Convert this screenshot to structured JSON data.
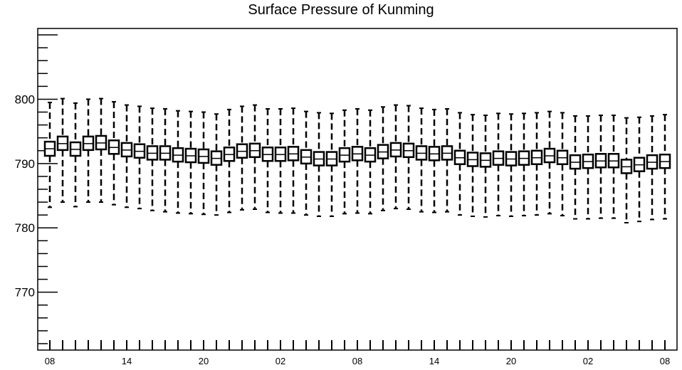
{
  "chart_data": {
    "type": "boxplot",
    "title": "Surface Pressure of Kunming",
    "xlabel": "",
    "ylabel": "",
    "ylim": [
      761,
      811
    ],
    "y_ticks": [
      "770",
      "780",
      "790",
      "800"
    ],
    "x_ticks": [
      "08",
      "14",
      "20",
      "02",
      "08",
      "14",
      "20",
      "02",
      "08"
    ],
    "time_step_hours": 1,
    "grid": false,
    "series": [
      {
        "median": [
          792.3,
          793.1,
          792.2,
          793.1,
          793.2,
          792.5,
          792.1,
          791.9,
          791.6,
          791.6,
          791.3,
          791.2,
          791.1,
          790.8,
          791.4,
          791.9,
          792.0,
          791.4,
          791.4,
          791.5,
          791.0,
          790.7,
          790.7,
          791.3,
          791.5,
          791.3,
          791.8,
          792.1,
          792.0,
          791.6,
          791.5,
          791.6,
          790.9,
          790.6,
          790.5,
          790.8,
          790.7,
          790.8,
          790.9,
          791.2,
          790.9,
          790.2,
          790.3,
          790.4,
          790.4,
          789.5,
          789.8,
          790.2,
          790.3
        ],
        "q1": [
          791.2,
          792.1,
          791.2,
          792.1,
          792.2,
          791.5,
          791.1,
          790.9,
          790.6,
          790.6,
          790.3,
          790.2,
          790.1,
          789.8,
          790.4,
          790.9,
          791.0,
          790.4,
          790.4,
          790.5,
          790.0,
          789.7,
          789.7,
          790.3,
          790.5,
          790.3,
          790.8,
          791.1,
          791.0,
          790.6,
          790.5,
          790.6,
          789.9,
          789.6,
          789.5,
          789.8,
          789.7,
          789.8,
          789.9,
          790.2,
          789.9,
          789.2,
          789.3,
          789.4,
          789.4,
          788.5,
          788.8,
          789.2,
          789.3
        ],
        "q3": [
          793.4,
          794.2,
          793.3,
          794.2,
          794.3,
          793.6,
          793.2,
          793.0,
          792.7,
          792.7,
          792.4,
          792.3,
          792.2,
          791.9,
          792.5,
          793.0,
          793.1,
          792.5,
          792.5,
          792.6,
          792.1,
          791.8,
          791.8,
          792.4,
          792.6,
          792.4,
          792.9,
          793.2,
          793.1,
          792.7,
          792.6,
          792.7,
          792.0,
          791.7,
          791.6,
          791.9,
          791.8,
          791.9,
          792.0,
          792.3,
          792.0,
          791.3,
          791.4,
          791.5,
          791.5,
          790.6,
          790.9,
          791.3,
          791.4
        ],
        "min": [
          783.2,
          784.0,
          783.3,
          784.0,
          784.0,
          783.6,
          783.2,
          783.0,
          782.7,
          782.5,
          782.3,
          782.2,
          782.1,
          782.0,
          782.4,
          782.8,
          782.9,
          782.4,
          782.3,
          782.3,
          782.0,
          781.8,
          781.8,
          782.2,
          782.3,
          782.2,
          782.7,
          783.0,
          782.9,
          782.5,
          782.4,
          782.5,
          782.0,
          781.8,
          781.7,
          781.9,
          781.8,
          781.9,
          782.0,
          782.2,
          781.9,
          781.4,
          781.4,
          781.5,
          781.5,
          780.8,
          781.0,
          781.3,
          781.4
        ],
        "max": [
          799.5,
          800.1,
          799.4,
          800.0,
          800.1,
          799.6,
          799.1,
          798.9,
          798.6,
          798.5,
          798.2,
          798.1,
          798.0,
          797.7,
          798.4,
          798.9,
          799.1,
          798.5,
          798.5,
          798.6,
          798.1,
          797.9,
          797.8,
          798.3,
          798.5,
          798.3,
          798.8,
          799.1,
          799.0,
          798.6,
          798.4,
          798.5,
          797.9,
          797.6,
          797.5,
          797.8,
          797.7,
          797.8,
          797.9,
          798.1,
          797.9,
          797.4,
          797.4,
          797.5,
          797.5,
          797.1,
          797.2,
          797.4,
          797.6
        ]
      }
    ]
  }
}
